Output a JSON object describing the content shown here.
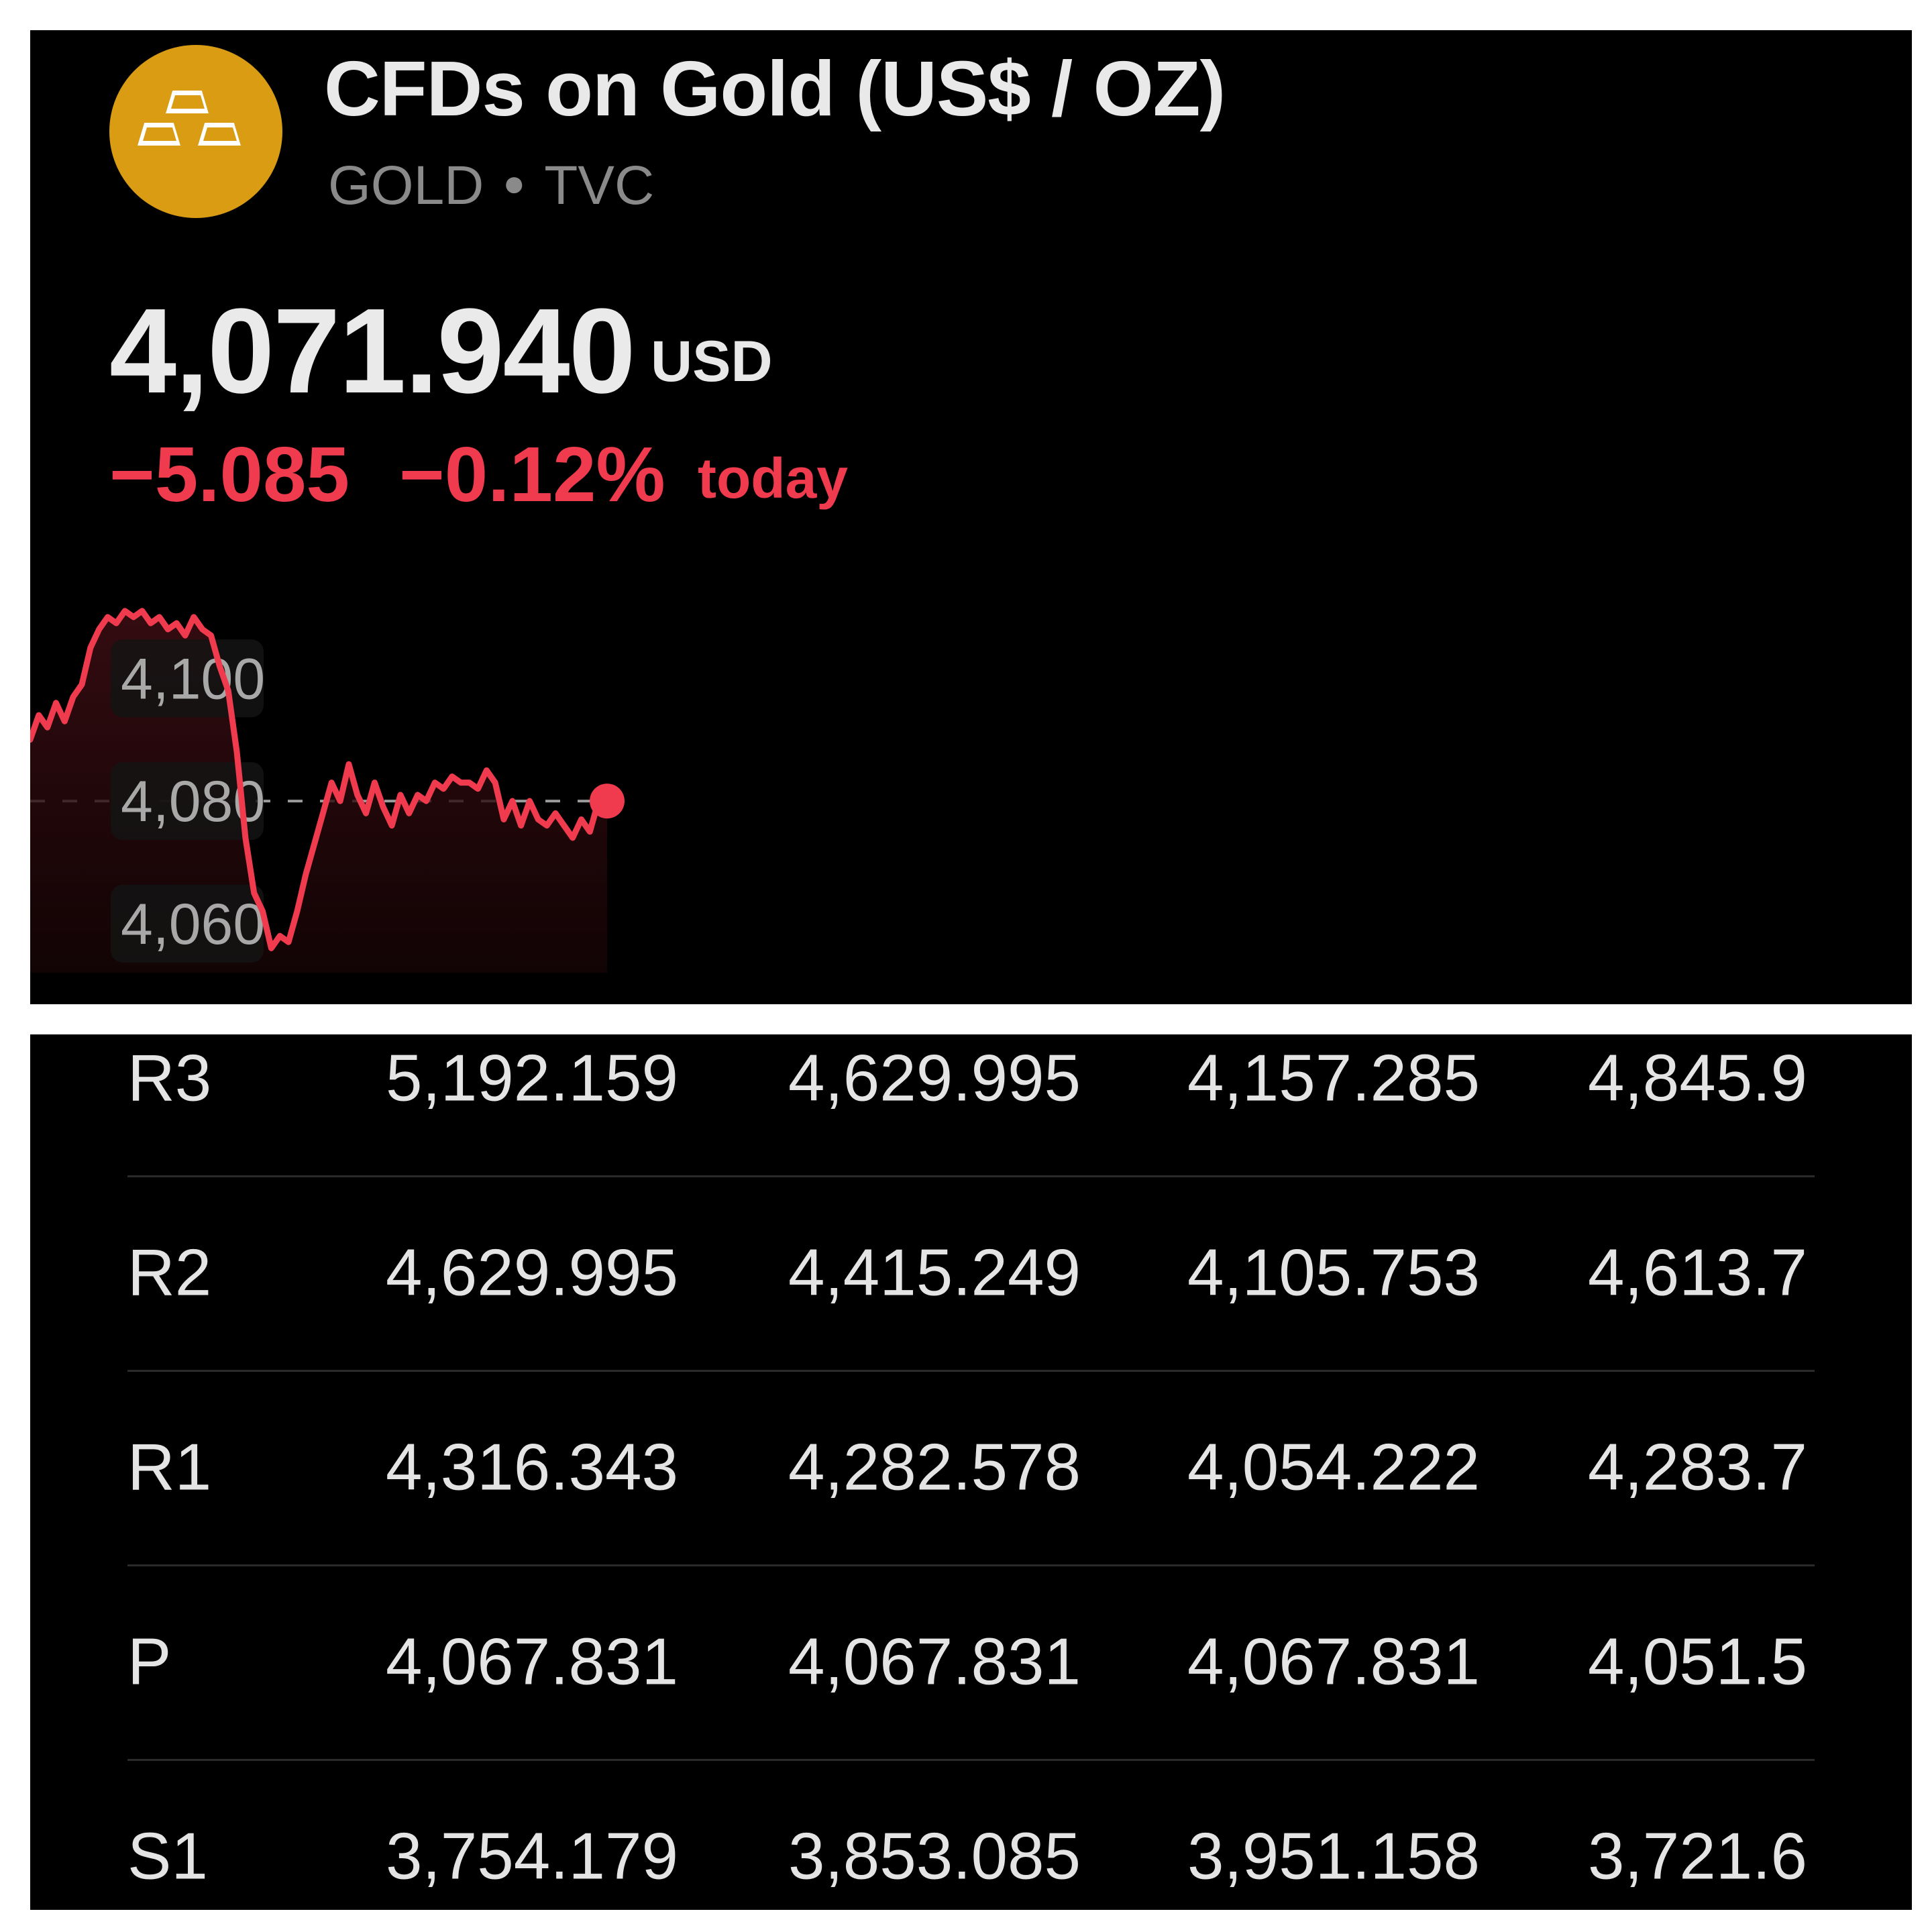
{
  "header": {
    "title": "CFDs on Gold (US$ / OZ)",
    "symbol": "GOLD",
    "exchange": "TVC",
    "logo_icon": "gold-bars-icon",
    "logo_color": "#d99c12"
  },
  "quote": {
    "price": "4,071.940",
    "currency": "USD",
    "change_abs": "−5.085",
    "change_pct": "−0.12%",
    "change_period": "today",
    "change_color": "#ef3b4d"
  },
  "chart_data": {
    "type": "line",
    "title": "",
    "xlabel": "",
    "ylabel": "",
    "y_ticks": [
      "4,100",
      "4,080",
      "4,060"
    ],
    "ylim": [
      4052,
      4116
    ],
    "reference_line": 4080,
    "line_color": "#ef3b4d",
    "series": [
      {
        "values": [
          4090,
          4094,
          4092,
          4096,
          4093,
          4097,
          4099,
          4105,
          4108,
          4110,
          4109,
          4111,
          4110,
          4111,
          4109,
          4110,
          4108,
          4109,
          4107,
          4110,
          4108,
          4107,
          4102,
          4098,
          4088,
          4074,
          4065,
          4062,
          4056,
          4058,
          4057,
          4062,
          4068,
          4073,
          4078,
          4083,
          4080,
          4086,
          4081,
          4078,
          4083,
          4079,
          4076,
          4081,
          4078,
          4081,
          4080,
          4083,
          4082,
          4084,
          4083,
          4083,
          4082,
          4085,
          4083,
          4077,
          4080,
          4076,
          4080,
          4077,
          4076,
          4078,
          4076,
          4074,
          4077,
          4075,
          4080,
          4080
        ]
      }
    ]
  },
  "pivot_table": {
    "rows": [
      {
        "label": "R3",
        "values": [
          "5,192.159",
          "4,629.995",
          "4,157.285",
          "4,845.9"
        ]
      },
      {
        "label": "R2",
        "values": [
          "4,629.995",
          "4,415.249",
          "4,105.753",
          "4,613.7"
        ]
      },
      {
        "label": "R1",
        "values": [
          "4,316.343",
          "4,282.578",
          "4,054.222",
          "4,283.7"
        ]
      },
      {
        "label": "P",
        "values": [
          "4,067.831",
          "4,067.831",
          "4,067.831",
          "4,051.5"
        ]
      },
      {
        "label": "S1",
        "values": [
          "3,754.179",
          "3,853.085",
          "3,951.158",
          "3,721.6"
        ]
      }
    ]
  }
}
